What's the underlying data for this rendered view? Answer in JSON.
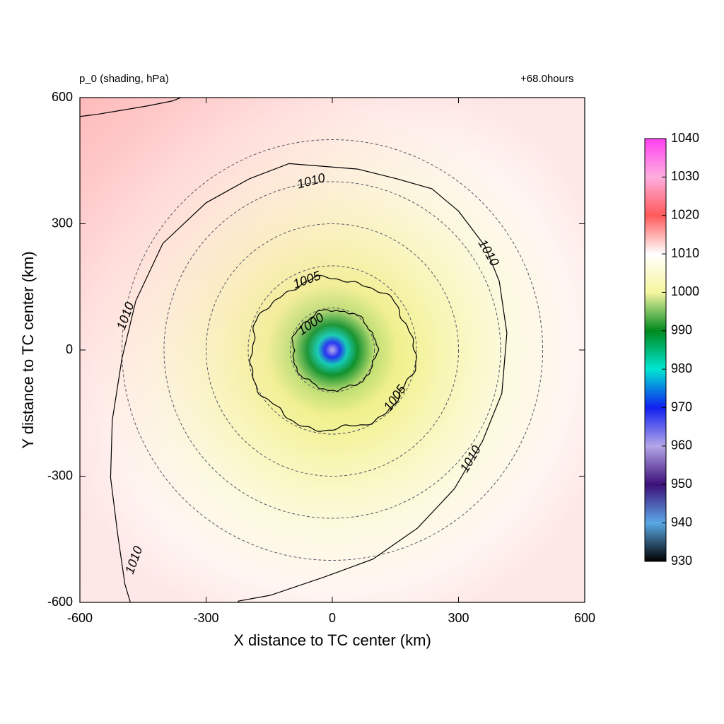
{
  "chart_data": {
    "type": "heatmap",
    "title_left": "p_0 (shading, hPa)",
    "title_right": "+68.0hours",
    "xlabel": "X distance to TC center (km)",
    "ylabel": "Y distance to TC center (km)",
    "xlim": [
      -600,
      600
    ],
    "ylim": [
      -600,
      600
    ],
    "x_ticks": [
      "-600",
      "-300",
      "0",
      "300",
      "600"
    ],
    "y_ticks": [
      "600",
      "300",
      "0",
      "-300",
      "-600"
    ],
    "x_tick_values": [
      -600,
      -300,
      0,
      300,
      600
    ],
    "y_tick_values": [
      600,
      300,
      0,
      -300,
      -600
    ],
    "colorbar": {
      "range": [
        930,
        1040
      ],
      "tick_labels": [
        "1040",
        "1030",
        "1020",
        "1010",
        "1000",
        "990",
        "980",
        "970",
        "960",
        "950",
        "940",
        "930"
      ],
      "tick_values": [
        1040,
        1030,
        1020,
        1010,
        1000,
        990,
        980,
        970,
        960,
        950,
        940,
        930
      ],
      "stops": [
        {
          "value": 930,
          "color": "#000000"
        },
        {
          "value": 940,
          "color": "#5aa8e6"
        },
        {
          "value": 950,
          "color": "#3c1078"
        },
        {
          "value": 960,
          "color": "#b4a6e8"
        },
        {
          "value": 970,
          "color": "#1020f0"
        },
        {
          "value": 980,
          "color": "#00e6d2"
        },
        {
          "value": 990,
          "color": "#008a1e"
        },
        {
          "value": 1000,
          "color": "#f6f6a0"
        },
        {
          "value": 1010,
          "color": "#ffffff"
        },
        {
          "value": 1020,
          "color": "#ff5a5a"
        },
        {
          "value": 1030,
          "color": "#ffaee0"
        },
        {
          "value": 1040,
          "color": "#ff40f0"
        }
      ]
    },
    "center_pressure_hPa": 960,
    "contour_levels": [
      "1000",
      "1005",
      "1010"
    ],
    "dashed_circle_radii_km": [
      100,
      200,
      300,
      400,
      500
    ],
    "contour_labels": [
      {
        "text": "1010",
        "x": -50,
        "y": 400,
        "angle": -15
      },
      {
        "text": "1010",
        "x": 370,
        "y": 230,
        "angle": 60
      },
      {
        "text": "1010",
        "x": -490,
        "y": 80,
        "angle": -70
      },
      {
        "text": "1010",
        "x": 330,
        "y": -260,
        "angle": -60
      },
      {
        "text": "1010",
        "x": -470,
        "y": -500,
        "angle": -70
      },
      {
        "text": "1005",
        "x": -60,
        "y": 165,
        "angle": -20
      },
      {
        "text": "1005",
        "x": 150,
        "y": -115,
        "angle": -55
      },
      {
        "text": "1000",
        "x": -50,
        "y": 60,
        "angle": -35
      }
    ]
  }
}
